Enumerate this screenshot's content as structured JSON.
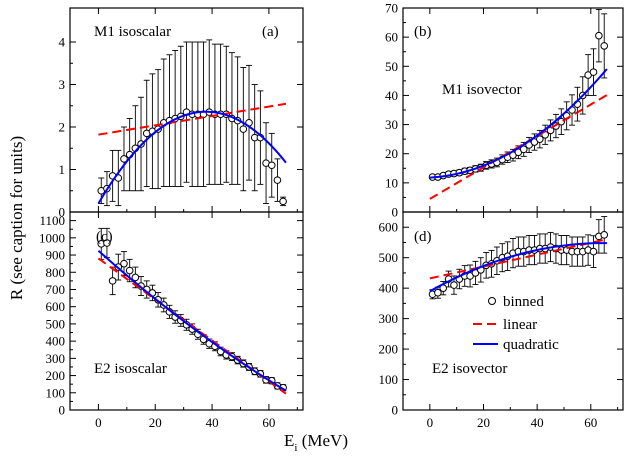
{
  "figure": {
    "ylabel": "R  (see caption for units)",
    "xlabel_main": "E",
    "xlabel_sub": "i",
    "xlabel_unit": " (MeV)"
  },
  "legend": {
    "binned": "binned",
    "linear": "linear",
    "quadratic": "quadratic"
  },
  "colors": {
    "linear": "#ff0000",
    "quadratic": "#0000ff",
    "points": "#000000"
  },
  "chart_data": [
    {
      "id": "a",
      "type": "scatter",
      "panel_label": "(a)",
      "title": "M1 isoscalar",
      "xlim": [
        -10,
        72
      ],
      "ylim": [
        0,
        4.8
      ],
      "xticks": [
        0,
        20,
        40,
        60
      ],
      "yticks": [
        0,
        1,
        2,
        3,
        4
      ],
      "x": [
        1,
        3,
        5,
        7,
        9,
        11,
        13,
        15,
        17,
        19,
        21,
        23,
        25,
        27,
        29,
        31,
        33,
        35,
        37,
        39,
        41,
        43,
        45,
        47,
        49,
        51,
        53,
        55,
        57,
        59,
        61,
        63,
        65
      ],
      "y": [
        0.5,
        0.55,
        0.85,
        0.8,
        1.25,
        1.35,
        1.5,
        1.6,
        1.85,
        1.9,
        1.95,
        2.1,
        2.15,
        2.2,
        2.25,
        2.35,
        2.3,
        2.3,
        2.3,
        2.35,
        2.3,
        2.3,
        2.3,
        2.2,
        2.15,
        1.95,
        2.1,
        1.75,
        1.75,
        1.15,
        1.1,
        0.75,
        0.25
      ],
      "err": [
        0.3,
        0.4,
        0.6,
        0.65,
        0.75,
        0.85,
        1.0,
        1.1,
        1.25,
        1.35,
        1.4,
        1.5,
        1.55,
        1.6,
        1.65,
        1.65,
        1.7,
        1.7,
        1.7,
        1.7,
        1.65,
        1.65,
        1.6,
        1.55,
        1.5,
        1.45,
        1.35,
        1.25,
        1.1,
        0.95,
        0.75,
        0.5,
        0.1
      ],
      "linear_fit": {
        "intercept": 1.82,
        "slope": 0.011
      },
      "quadratic_fit": {
        "a": 0.2,
        "b": 0.1142,
        "c": -0.00151
      },
      "fit_range": [
        0,
        66
      ]
    },
    {
      "id": "b",
      "type": "scatter",
      "panel_label": "(b)",
      "title": "M1 isovector",
      "xlim": [
        -10,
        72
      ],
      "ylim": [
        0,
        70
      ],
      "xticks": [
        0,
        20,
        40,
        60
      ],
      "yticks": [
        0,
        10,
        20,
        30,
        40,
        50,
        60,
        70
      ],
      "x": [
        1,
        3,
        5,
        7,
        9,
        11,
        13,
        15,
        17,
        19,
        21,
        23,
        25,
        27,
        29,
        31,
        33,
        35,
        37,
        39,
        41,
        43,
        45,
        47,
        49,
        51,
        53,
        55,
        57,
        59,
        61,
        63,
        65
      ],
      "y": [
        12,
        12,
        12.5,
        13,
        13.2,
        13.5,
        14,
        14.3,
        14.8,
        15.2,
        16,
        16.5,
        17,
        18,
        18.8,
        19.5,
        20.5,
        21.5,
        23,
        24,
        25,
        26.5,
        28,
        29.5,
        31,
        33,
        35,
        37,
        40,
        47,
        48,
        60.5,
        57
      ],
      "err": [
        0.5,
        0.6,
        0.7,
        0.8,
        0.8,
        0.9,
        1,
        1,
        1.1,
        1.2,
        1.3,
        1.4,
        1.5,
        1.6,
        1.8,
        2,
        2.2,
        2.4,
        2.6,
        2.8,
        3,
        3.3,
        3.6,
        4,
        4.4,
        4.8,
        5.2,
        5.8,
        6.4,
        7,
        8,
        9,
        11
      ],
      "linear_fit": {
        "intercept": 4.5,
        "slope": 0.54
      },
      "quadratic_fit": {
        "a": 11.8,
        "b": 0.05,
        "c": 0.0078
      },
      "fit_range": [
        0,
        66
      ]
    },
    {
      "id": "c",
      "type": "scatter",
      "panel_label": "(c)",
      "title": "E2 isoscalar",
      "xlim": [
        -10,
        72
      ],
      "ylim": [
        0,
        1150
      ],
      "xticks": [
        0,
        20,
        40,
        60
      ],
      "yticks": [
        0,
        100,
        200,
        300,
        400,
        500,
        600,
        700,
        800,
        900,
        1000,
        1100
      ],
      "x": [
        1,
        3,
        5,
        7,
        9,
        11,
        13,
        15,
        17,
        19,
        21,
        23,
        25,
        27,
        29,
        31,
        33,
        35,
        37,
        39,
        41,
        43,
        45,
        47,
        49,
        51,
        53,
        55,
        57,
        59,
        61,
        63,
        65
      ],
      "y": [
        965,
        970,
        750,
        830,
        850,
        810,
        770,
        720,
        700,
        680,
        640,
        610,
        570,
        540,
        520,
        495,
        470,
        440,
        410,
        385,
        370,
        340,
        320,
        310,
        290,
        270,
        250,
        225,
        210,
        175,
        170,
        140,
        130
      ],
      "err": [
        90,
        85,
        80,
        75,
        70,
        65,
        60,
        55,
        50,
        45,
        42,
        40,
        38,
        36,
        34,
        32,
        30,
        29,
        28,
        27,
        26,
        25,
        24,
        23,
        22,
        21,
        20,
        20,
        19,
        19,
        18,
        18,
        17
      ],
      "linear_fit": {
        "intercept": 880,
        "slope": -11.9
      },
      "quadratic_fit": {
        "a": 925,
        "b": -14.7,
        "c": 0.036
      },
      "fit_range": [
        0,
        66
      ]
    },
    {
      "id": "d",
      "type": "scatter",
      "panel_label": "(d)",
      "title": "E2 isovector",
      "xlim": [
        -10,
        72
      ],
      "ylim": [
        0,
        650
      ],
      "xticks": [
        0,
        20,
        40,
        60
      ],
      "yticks": [
        0,
        100,
        200,
        300,
        400,
        500,
        600
      ],
      "x": [
        1,
        3,
        5,
        7,
        9,
        11,
        13,
        15,
        17,
        19,
        21,
        23,
        25,
        27,
        29,
        31,
        33,
        35,
        37,
        39,
        41,
        43,
        45,
        47,
        49,
        51,
        53,
        55,
        57,
        59,
        61,
        63,
        65
      ],
      "y": [
        380,
        385,
        400,
        430,
        410,
        430,
        440,
        440,
        450,
        460,
        475,
        480,
        490,
        500,
        505,
        515,
        520,
        520,
        525,
        525,
        530,
        530,
        535,
        530,
        525,
        525,
        520,
        520,
        520,
        525,
        520,
        570,
        575
      ],
      "err": [
        15,
        18,
        22,
        26,
        30,
        32,
        34,
        36,
        38,
        40,
        42,
        44,
        45,
        46,
        47,
        48,
        48,
        48,
        48,
        48,
        48,
        48,
        48,
        48,
        48,
        48,
        48,
        48,
        48,
        50,
        52,
        55,
        60
      ],
      "linear_fit": {
        "intercept": 432,
        "slope": 1.95
      },
      "quadratic_fit": {
        "a": 390,
        "b": 4.9,
        "c": -0.038
      },
      "fit_range": [
        0,
        66
      ]
    }
  ]
}
